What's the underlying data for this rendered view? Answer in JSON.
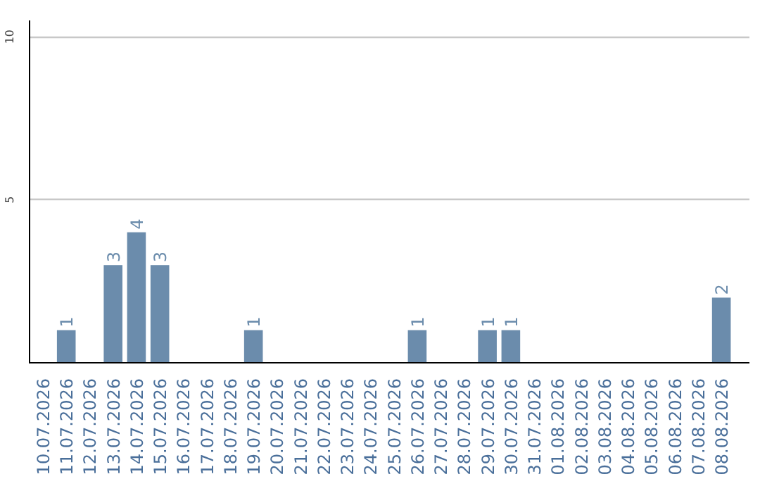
{
  "chart_data": {
    "type": "bar",
    "categories": [
      "10.07.2026",
      "11.07.2026",
      "12.07.2026",
      "13.07.2026",
      "14.07.2026",
      "15.07.2026",
      "16.07.2026",
      "17.07.2026",
      "18.07.2026",
      "19.07.2026",
      "20.07.2026",
      "21.07.2026",
      "22.07.2026",
      "23.07.2026",
      "24.07.2026",
      "25.07.2026",
      "26.07.2026",
      "27.07.2026",
      "28.07.2026",
      "29.07.2026",
      "30.07.2026",
      "31.07.2026",
      "01.08.2026",
      "02.08.2026",
      "03.08.2026",
      "04.08.2026",
      "05.08.2026",
      "06.08.2026",
      "07.08.2026",
      "08.08.2026"
    ],
    "values": [
      0,
      1,
      0,
      3,
      4,
      3,
      0,
      0,
      0,
      1,
      0,
      0,
      0,
      0,
      0,
      0,
      1,
      0,
      0,
      1,
      1,
      0,
      0,
      0,
      0,
      0,
      0,
      0,
      0,
      2
    ],
    "value_labels": [
      null,
      "1",
      null,
      "3",
      "4",
      "3",
      null,
      null,
      null,
      "1",
      null,
      null,
      null,
      null,
      null,
      null,
      "1",
      null,
      null,
      "1",
      "1",
      null,
      null,
      null,
      null,
      null,
      null,
      null,
      null,
      "2"
    ],
    "color": "#6b8cac",
    "ylim": [
      0,
      10.5
    ],
    "yticks": [
      5,
      10
    ],
    "grid": "y"
  }
}
